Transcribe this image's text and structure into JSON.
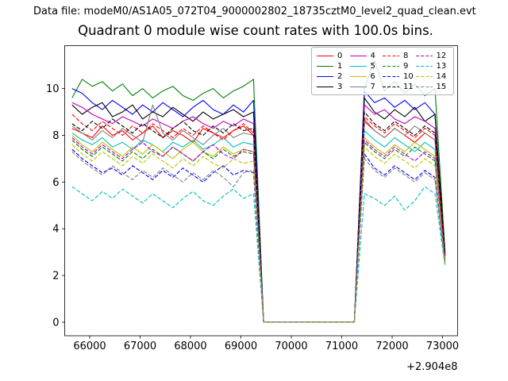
{
  "header": {
    "datafile": "Data file: modeM0/AS1A05_072T04_9000002802_18735cztM0_level2_quad_clean.evt"
  },
  "title": "Quadrant 0 module wise count rates with 100.0s bins.",
  "chart_data": {
    "type": "line",
    "title": "Quadrant 0 module wise count rates with 100.0s bins.",
    "xlabel": "",
    "ylabel": "",
    "x_offset_label": "+2.904e8",
    "bin_seconds": 100.0,
    "grid": false,
    "legend_position": "upper right",
    "legend_columns": 4,
    "legend_order": "column-major",
    "xlim": [
      65504,
      73299
    ],
    "ylim": [
      -0.58,
      11.84
    ],
    "x_ticks": [
      66000,
      67000,
      68000,
      69000,
      70000,
      71000,
      72000,
      73000
    ],
    "y_ticks": [
      0,
      2,
      4,
      6,
      8,
      10
    ],
    "x": [
      65650,
      65850,
      66050,
      66250,
      66450,
      66650,
      66850,
      67050,
      67250,
      67450,
      67650,
      67850,
      68050,
      68250,
      68450,
      68650,
      68850,
      69050,
      69250,
      69450,
      69650,
      69850,
      70050,
      70250,
      70450,
      70650,
      70850,
      71050,
      71250,
      71450,
      71650,
      71850,
      72050,
      72250,
      72450,
      72650,
      72850,
      73050
    ],
    "series": [
      {
        "name": "0",
        "color": "#ff0000",
        "dash": false,
        "values": [
          8.3,
          8.1,
          7.9,
          8.4,
          8.0,
          8.2,
          7.8,
          8.1,
          8.4,
          7.9,
          8.2,
          8.0,
          7.7,
          8.3,
          8.1,
          7.9,
          8.2,
          8.4,
          8.0,
          0,
          0,
          0,
          0,
          0,
          0,
          0,
          0,
          0,
          0,
          8.6,
          8.2,
          7.9,
          8.3,
          8.0,
          7.7,
          8.1,
          7.8,
          2.8
        ]
      },
      {
        "name": "1",
        "color": "#008000",
        "dash": false,
        "values": [
          9.6,
          10.4,
          10.1,
          10.3,
          9.9,
          10.2,
          9.7,
          10.0,
          9.6,
          9.9,
          10.1,
          9.7,
          9.5,
          9.8,
          10.0,
          9.6,
          9.9,
          10.1,
          10.4,
          0,
          0,
          0,
          0,
          0,
          0,
          0,
          0,
          0,
          0,
          10.0,
          11.2,
          9.9,
          10.3,
          9.8,
          10.2,
          9.7,
          10.0,
          3.0
        ]
      },
      {
        "name": "2",
        "color": "#0000ff",
        "dash": false,
        "values": [
          10.0,
          9.8,
          9.4,
          9.1,
          9.5,
          9.2,
          8.9,
          9.3,
          9.0,
          9.4,
          9.1,
          8.8,
          9.2,
          9.5,
          9.1,
          8.9,
          9.3,
          9.0,
          9.5,
          0,
          0,
          0,
          0,
          0,
          0,
          0,
          0,
          0,
          0,
          9.9,
          9.4,
          9.6,
          9.2,
          9.5,
          9.1,
          9.4,
          8.9,
          2.9
        ]
      },
      {
        "name": "3",
        "color": "#000000",
        "dash": false,
        "values": [
          9.3,
          8.9,
          9.2,
          9.4,
          8.8,
          9.0,
          9.3,
          8.7,
          9.0,
          8.8,
          9.2,
          8.9,
          8.6,
          9.0,
          8.7,
          8.9,
          9.1,
          8.8,
          9.0,
          0,
          0,
          0,
          0,
          0,
          0,
          0,
          0,
          0,
          0,
          9.6,
          9.0,
          8.7,
          9.1,
          8.8,
          9.2,
          8.6,
          8.9,
          2.9
        ]
      },
      {
        "name": "4",
        "color": "#bf00bf",
        "dash": false,
        "values": [
          9.4,
          9.2,
          8.9,
          8.7,
          8.5,
          8.8,
          8.6,
          8.4,
          8.7,
          8.5,
          8.3,
          8.6,
          8.8,
          8.5,
          8.3,
          8.6,
          8.4,
          8.7,
          8.5,
          0,
          0,
          0,
          0,
          0,
          0,
          0,
          0,
          0,
          0,
          9.3,
          8.9,
          9.1,
          8.7,
          8.5,
          8.8,
          8.6,
          8.3,
          2.8
        ]
      },
      {
        "name": "5",
        "color": "#00bfbf",
        "dash": false,
        "values": [
          8.1,
          7.8,
          7.6,
          7.9,
          7.5,
          7.7,
          7.4,
          7.8,
          7.6,
          7.3,
          7.7,
          7.5,
          7.8,
          7.4,
          7.6,
          7.9,
          7.5,
          7.7,
          7.6,
          0,
          0,
          0,
          0,
          0,
          0,
          0,
          0,
          0,
          0,
          8.2,
          7.8,
          7.5,
          7.9,
          7.6,
          7.3,
          7.7,
          7.4,
          2.7
        ]
      },
      {
        "name": "6",
        "color": "#bfbf00",
        "dash": false,
        "values": [
          8.0,
          7.6,
          7.3,
          7.7,
          7.4,
          7.1,
          7.5,
          7.2,
          7.6,
          7.3,
          7.0,
          7.4,
          7.7,
          7.3,
          7.1,
          7.5,
          7.2,
          7.4,
          7.3,
          0,
          0,
          0,
          0,
          0,
          0,
          0,
          0,
          0,
          0,
          7.9,
          7.5,
          7.2,
          7.6,
          7.3,
          7.7,
          7.4,
          7.1,
          2.7
        ]
      },
      {
        "name": "7",
        "color": "#808080",
        "dash": false,
        "values": [
          8.4,
          8.1,
          7.8,
          8.2,
          7.9,
          8.3,
          8.0,
          7.7,
          9.3,
          8.1,
          7.8,
          8.2,
          7.9,
          7.6,
          8.0,
          8.3,
          7.9,
          8.1,
          8.0,
          0,
          0,
          0,
          0,
          0,
          0,
          0,
          0,
          0,
          0,
          8.7,
          8.2,
          7.9,
          8.3,
          8.0,
          8.4,
          8.1,
          7.8,
          2.8
        ]
      },
      {
        "name": "8",
        "color": "#ff0000",
        "dash": true,
        "values": [
          8.9,
          8.5,
          8.2,
          8.6,
          8.3,
          8.0,
          8.4,
          8.1,
          8.5,
          8.2,
          7.9,
          8.3,
          8.0,
          8.4,
          8.1,
          7.8,
          8.2,
          8.5,
          8.1,
          0,
          0,
          0,
          0,
          0,
          0,
          0,
          0,
          0,
          0,
          8.8,
          8.4,
          8.1,
          8.5,
          8.2,
          7.9,
          8.3,
          8.0,
          2.8
        ]
      },
      {
        "name": "9",
        "color": "#008000",
        "dash": true,
        "values": [
          7.8,
          7.4,
          7.1,
          7.5,
          7.2,
          6.9,
          7.3,
          7.0,
          7.4,
          7.1,
          7.5,
          7.2,
          6.9,
          7.3,
          7.0,
          7.4,
          7.1,
          7.3,
          7.2,
          0,
          0,
          0,
          0,
          0,
          0,
          0,
          0,
          0,
          0,
          7.7,
          7.3,
          7.0,
          7.4,
          7.1,
          7.5,
          7.2,
          6.9,
          2.6
        ]
      },
      {
        "name": "10",
        "color": "#0000ff",
        "dash": true,
        "values": [
          7.4,
          7.0,
          6.7,
          6.4,
          6.6,
          6.3,
          6.7,
          6.4,
          6.1,
          6.5,
          6.2,
          6.6,
          6.3,
          6.0,
          6.4,
          6.7,
          6.3,
          6.5,
          6.4,
          0,
          0,
          0,
          0,
          0,
          0,
          0,
          0,
          0,
          0,
          7.2,
          6.6,
          6.3,
          6.7,
          6.4,
          6.1,
          6.5,
          6.2,
          2.5
        ]
      },
      {
        "name": "11",
        "color": "#000000",
        "dash": true,
        "values": [
          8.5,
          8.2,
          8.6,
          8.3,
          8.7,
          8.4,
          8.1,
          8.5,
          8.2,
          7.9,
          8.3,
          8.6,
          8.2,
          8.0,
          8.4,
          8.1,
          8.5,
          8.2,
          8.3,
          0,
          0,
          0,
          0,
          0,
          0,
          0,
          0,
          0,
          0,
          9.0,
          8.5,
          8.2,
          8.6,
          8.3,
          8.0,
          8.4,
          8.1,
          2.9
        ]
      },
      {
        "name": "12",
        "color": "#bf00bf",
        "dash": true,
        "values": [
          7.9,
          7.5,
          7.2,
          7.6,
          7.3,
          7.0,
          7.4,
          7.7,
          7.3,
          7.1,
          7.5,
          7.2,
          6.9,
          7.3,
          7.6,
          7.2,
          7.0,
          7.4,
          7.3,
          0,
          0,
          0,
          0,
          0,
          0,
          0,
          0,
          0,
          0,
          7.8,
          7.4,
          7.1,
          7.5,
          7.2,
          6.9,
          7.3,
          7.0,
          2.6
        ]
      },
      {
        "name": "13",
        "color": "#00bfbf",
        "dash": true,
        "values": [
          5.8,
          5.5,
          5.2,
          5.6,
          5.3,
          5.7,
          5.4,
          5.1,
          5.5,
          5.2,
          4.9,
          5.3,
          5.6,
          5.2,
          5.0,
          5.4,
          5.7,
          5.3,
          5.5,
          0,
          0,
          0,
          0,
          0,
          0,
          0,
          0,
          0,
          0,
          5.5,
          5.3,
          5.0,
          5.4,
          4.8,
          5.2,
          5.8,
          5.5,
          2.4
        ]
      },
      {
        "name": "14",
        "color": "#bfbf00",
        "dash": true,
        "values": [
          7.6,
          7.2,
          6.9,
          7.3,
          7.0,
          6.7,
          7.1,
          6.8,
          7.2,
          6.9,
          6.6,
          7.0,
          6.7,
          7.1,
          6.8,
          6.6,
          7.0,
          6.8,
          6.9,
          0,
          0,
          0,
          0,
          0,
          0,
          0,
          0,
          0,
          0,
          7.5,
          7.1,
          6.8,
          7.2,
          6.9,
          6.6,
          7.0,
          6.7,
          2.5
        ]
      },
      {
        "name": "15",
        "color": "#808080",
        "dash": true,
        "values": [
          7.3,
          6.9,
          6.6,
          6.3,
          6.7,
          6.4,
          6.1,
          6.5,
          6.2,
          6.6,
          6.3,
          6.0,
          6.4,
          6.1,
          6.5,
          6.2,
          5.8,
          6.4,
          6.5,
          0,
          0,
          0,
          0,
          0,
          0,
          0,
          0,
          0,
          0,
          7.0,
          6.5,
          6.2,
          6.6,
          6.3,
          6.0,
          6.4,
          6.1,
          2.5
        ]
      }
    ]
  }
}
